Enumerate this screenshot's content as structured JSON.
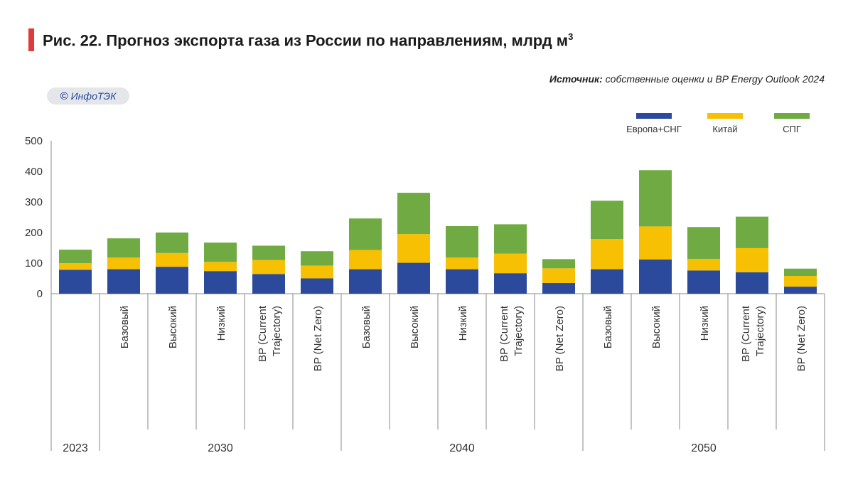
{
  "header": {
    "title": "Рис. 22.  Прогноз экспорта газа из России по направлениям, млрд м",
    "title_sup": "3",
    "source_label": "Источник:",
    "source_text": " собственные оценки и BP Energy Outlook 2024",
    "badge_symbol": "©",
    "badge_text": "ИнфоТЭК",
    "accent_color": "#e03a3e"
  },
  "chart_data": {
    "type": "bar",
    "stacked": true,
    "ylim": [
      0,
      500
    ],
    "yticks": [
      0,
      100,
      200,
      300,
      400,
      500
    ],
    "legend_position": "top-right",
    "grid": false,
    "categories": [
      "",
      "Базовый",
      "Высокий",
      "Низкий",
      "BP (Current Trajectory)",
      "BP (Net Zero)",
      "Базовый",
      "Высокий",
      "Низкий",
      "BP (Current Trajectory)",
      "BP (Net Zero)",
      "Базовый",
      "Высокий",
      "Низкий",
      "BP (Current Trajectory)",
      "BP (Net Zero)"
    ],
    "category_lines": [
      [],
      [
        "Базовый"
      ],
      [
        "Высокий"
      ],
      [
        "Низкий"
      ],
      [
        "BP (Current",
        "Trajectory)"
      ],
      [
        "BP (Net Zero)"
      ],
      [
        "Базовый"
      ],
      [
        "Высокий"
      ],
      [
        "Низкий"
      ],
      [
        "BP (Current",
        "Trajectory)"
      ],
      [
        "BP (Net Zero)"
      ],
      [
        "Базовый"
      ],
      [
        "Высокий"
      ],
      [
        "Низкий"
      ],
      [
        "BP (Current",
        "Trajectory)"
      ],
      [
        "BP (Net Zero)"
      ]
    ],
    "groups": [
      {
        "label": "2023",
        "start": 0,
        "end": 0
      },
      {
        "label": "2030",
        "start": 1,
        "end": 5
      },
      {
        "label": "2040",
        "start": 6,
        "end": 10
      },
      {
        "label": "2050",
        "start": 11,
        "end": 15
      }
    ],
    "series": [
      {
        "name": "Европа+СНГ",
        "color": "#2b4a9b",
        "values": [
          78,
          80,
          88,
          74,
          64,
          50,
          80,
          101,
          80,
          67,
          35,
          80,
          112,
          76,
          70,
          23
        ]
      },
      {
        "name": "Китай",
        "color": "#f7c003",
        "values": [
          22,
          38,
          45,
          30,
          46,
          42,
          63,
          94,
          38,
          64,
          48,
          99,
          108,
          38,
          79,
          35
        ]
      },
      {
        "name": "СПГ",
        "color": "#6fab42",
        "values": [
          44,
          63,
          67,
          63,
          47,
          47,
          103,
          135,
          103,
          96,
          30,
          125,
          184,
          104,
          103,
          24
        ]
      }
    ]
  }
}
